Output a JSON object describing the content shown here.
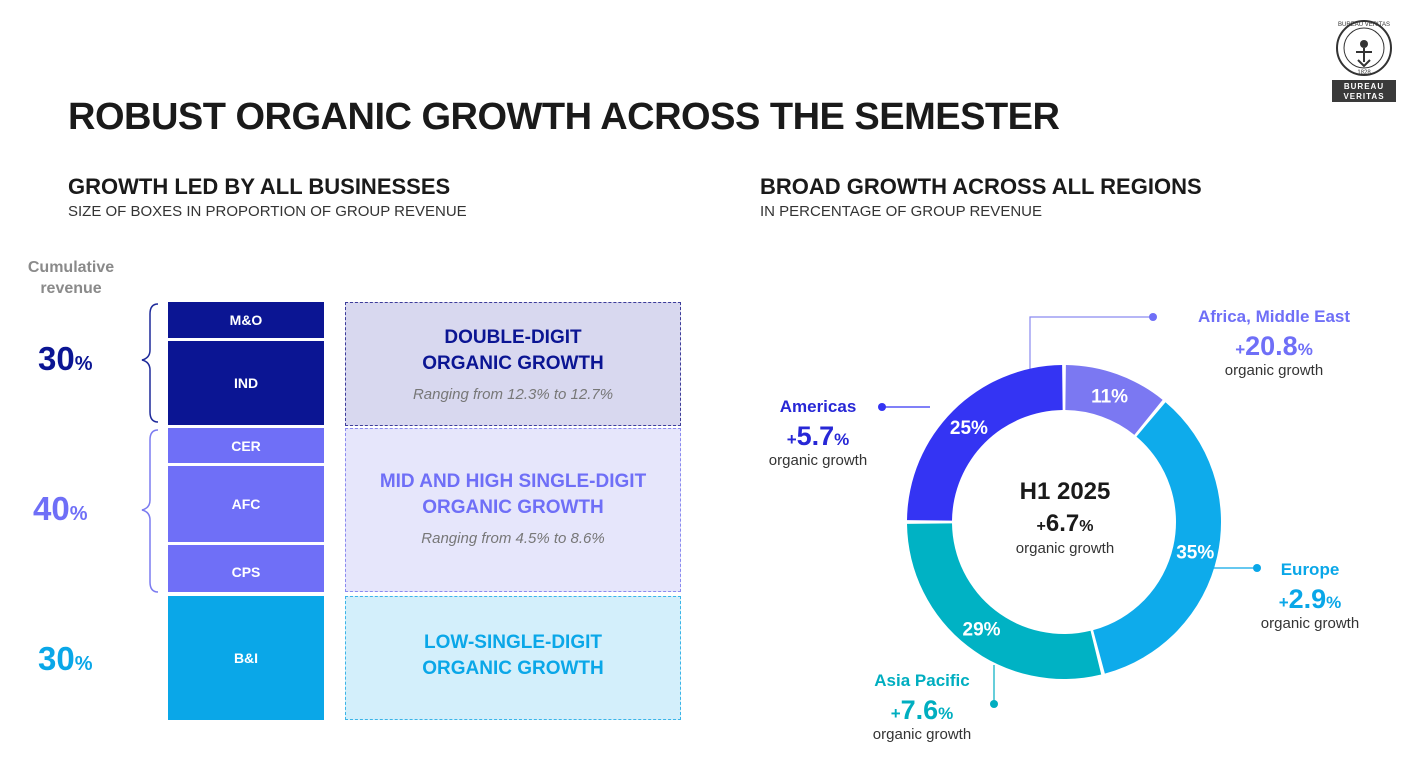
{
  "title": "ROBUST ORGANIC GROWTH ACROSS THE SEMESTER",
  "logo": {
    "ring_text": "BUREAU VERITAS",
    "year": "1828",
    "line1": "BUREAU",
    "line2": "VERITAS"
  },
  "left": {
    "title": "GROWTH LED BY ALL BUSINESSES",
    "subtitle": "SIZE OF BOXES IN PROPORTION OF GROUP REVENUE",
    "cumulative_label": "Cumulative revenue",
    "groups": [
      {
        "pct": "30",
        "pct_sign": "%",
        "color": "#0b1593",
        "boxes": [
          "M&O",
          "IND"
        ],
        "heading_line1": "DOUBLE-DIGIT",
        "heading_line2": "ORGANIC GROWTH",
        "range": "Ranging from 12.3% to 12.7%"
      },
      {
        "pct": "40",
        "pct_sign": "%",
        "color": "#6f6ff7",
        "boxes": [
          "CER",
          "AFC",
          "CPS"
        ],
        "heading_line1": "MID AND HIGH SINGLE-DIGIT",
        "heading_line2": "ORGANIC GROWTH",
        "range": "Ranging from 4.5% to 8.6%"
      },
      {
        "pct": "30",
        "pct_sign": "%",
        "color": "#0aa7e8",
        "boxes": [
          "B&I"
        ],
        "heading_line1": "LOW-SINGLE-DIGIT",
        "heading_line2": "ORGANIC GROWTH",
        "range": ""
      }
    ]
  },
  "right": {
    "title": "BROAD GROWTH ACROSS ALL REGIONS",
    "subtitle": "IN PERCENTAGE OF GROUP REVENUE",
    "center": {
      "line1": "H1 2025",
      "value_sign": "+",
      "value": "6.7",
      "value_pct": "%",
      "label": "organic growth"
    },
    "regions": [
      {
        "name": "Africa, Middle East",
        "sign": "+",
        "value": "20.8",
        "pct": "%",
        "label": "organic growth",
        "color": "#6f6ff7"
      },
      {
        "name": "Americas",
        "sign": "+",
        "value": "5.7",
        "pct": "%",
        "label": "organic growth",
        "color": "#0b1593"
      },
      {
        "name": "Europe",
        "sign": "+",
        "value": "2.9",
        "pct": "%",
        "label": "organic growth",
        "color": "#0aa7e8"
      },
      {
        "name": "Asia Pacific",
        "sign": "+",
        "value": "7.6",
        "pct": "%",
        "label": "organic growth",
        "color": "#00aec0"
      }
    ]
  },
  "chart_data": {
    "type": "pie",
    "title": "BROAD GROWTH ACROSS ALL REGIONS",
    "categories": [
      "Africa, Middle East",
      "Europe",
      "Asia Pacific",
      "Americas"
    ],
    "values": [
      11,
      35,
      29,
      25
    ],
    "labels": [
      "11%",
      "35%",
      "29%",
      "25%"
    ],
    "colors": [
      "#7b78f2",
      "#0eabeb",
      "#00b2c4",
      "#3434f3"
    ]
  }
}
